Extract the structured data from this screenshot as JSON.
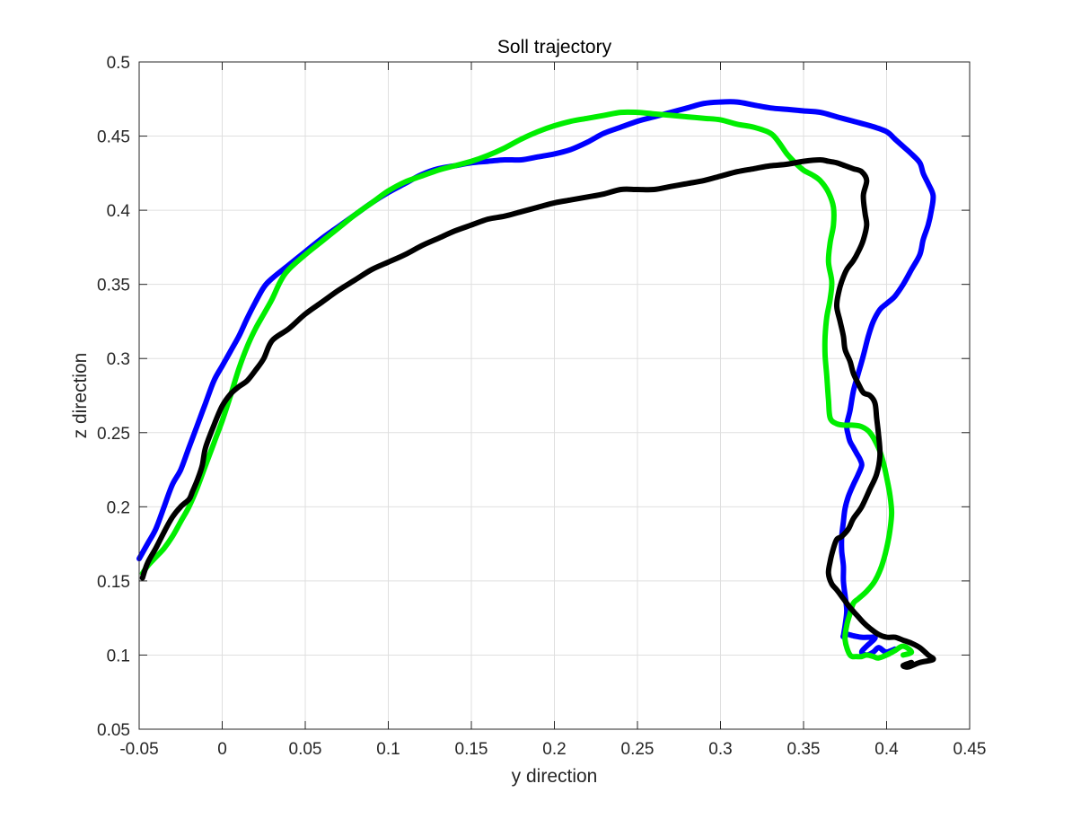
{
  "chart_data": {
    "type": "line",
    "title": "Soll trajectory",
    "xlabel": "y direction",
    "ylabel": "z direction",
    "xlim": [
      -0.05,
      0.45
    ],
    "ylim": [
      0.05,
      0.5
    ],
    "xticks": [
      -0.05,
      0,
      0.05,
      0.1,
      0.15,
      0.2,
      0.25,
      0.3,
      0.35,
      0.4,
      0.45
    ],
    "xtick_labels": [
      "-0.05",
      "0",
      "0.05",
      "0.1",
      "0.15",
      "0.2",
      "0.25",
      "0.3",
      "0.35",
      "0.4",
      "0.45"
    ],
    "yticks": [
      0.05,
      0.1,
      0.15,
      0.2,
      0.25,
      0.3,
      0.35,
      0.4,
      0.45,
      0.5
    ],
    "ytick_labels": [
      "0.05",
      "0.1",
      "0.15",
      "0.2",
      "0.25",
      "0.3",
      "0.35",
      "0.4",
      "0.45",
      "0.5"
    ],
    "grid": true,
    "box": true,
    "series": [
      {
        "color": "#0000ff",
        "x": [
          -0.05,
          -0.045,
          -0.04,
          -0.035,
          -0.03,
          -0.025,
          -0.02,
          -0.015,
          -0.01,
          -0.005,
          0.0,
          0.005,
          0.01,
          0.015,
          0.02,
          0.025,
          0.03,
          0.04,
          0.05,
          0.06,
          0.07,
          0.08,
          0.09,
          0.1,
          0.11,
          0.12,
          0.13,
          0.14,
          0.15,
          0.16,
          0.17,
          0.18,
          0.19,
          0.2,
          0.21,
          0.22,
          0.23,
          0.24,
          0.25,
          0.26,
          0.27,
          0.28,
          0.29,
          0.3,
          0.31,
          0.32,
          0.33,
          0.34,
          0.35,
          0.36,
          0.37,
          0.38,
          0.39,
          0.4,
          0.405,
          0.41,
          0.415,
          0.42,
          0.422,
          0.425,
          0.428,
          0.427,
          0.425,
          0.422,
          0.42,
          0.415,
          0.41,
          0.405,
          0.4,
          0.396,
          0.392,
          0.389,
          0.386,
          0.383,
          0.38,
          0.378,
          0.376,
          0.377,
          0.378,
          0.38,
          0.382,
          0.384,
          0.385,
          0.383,
          0.38,
          0.377,
          0.375,
          0.374,
          0.373,
          0.373,
          0.374,
          0.374,
          0.375,
          0.376,
          0.375,
          0.374,
          0.374,
          0.376,
          0.38,
          0.385,
          0.39,
          0.393,
          0.392,
          0.388,
          0.385,
          0.388,
          0.392,
          0.395,
          0.398,
          0.4,
          0.405
        ],
        "y": [
          0.165,
          0.175,
          0.185,
          0.2,
          0.215,
          0.225,
          0.24,
          0.255,
          0.27,
          0.285,
          0.295,
          0.305,
          0.315,
          0.327,
          0.338,
          0.348,
          0.354,
          0.363,
          0.372,
          0.381,
          0.389,
          0.397,
          0.405,
          0.412,
          0.418,
          0.424,
          0.428,
          0.43,
          0.432,
          0.433,
          0.434,
          0.434,
          0.436,
          0.438,
          0.441,
          0.446,
          0.452,
          0.456,
          0.46,
          0.463,
          0.466,
          0.469,
          0.472,
          0.473,
          0.473,
          0.471,
          0.469,
          0.468,
          0.467,
          0.466,
          0.463,
          0.46,
          0.457,
          0.453,
          0.448,
          0.443,
          0.438,
          0.432,
          0.425,
          0.418,
          0.41,
          0.4,
          0.39,
          0.38,
          0.37,
          0.36,
          0.35,
          0.342,
          0.337,
          0.333,
          0.325,
          0.315,
          0.302,
          0.29,
          0.278,
          0.265,
          0.255,
          0.248,
          0.244,
          0.24,
          0.236,
          0.232,
          0.228,
          0.222,
          0.215,
          0.207,
          0.199,
          0.19,
          0.18,
          0.17,
          0.16,
          0.15,
          0.14,
          0.13,
          0.12,
          0.113,
          0.113,
          0.114,
          0.113,
          0.112,
          0.112,
          0.112,
          0.11,
          0.106,
          0.102,
          0.1,
          0.102,
          0.105,
          0.103,
          0.102,
          0.104
        ]
      },
      {
        "color": "#00ee00",
        "x": [
          -0.048,
          -0.045,
          -0.04,
          -0.035,
          -0.03,
          -0.025,
          -0.02,
          -0.015,
          -0.01,
          -0.005,
          0.0,
          0.005,
          0.01,
          0.015,
          0.02,
          0.025,
          0.03,
          0.035,
          0.04,
          0.05,
          0.06,
          0.07,
          0.08,
          0.09,
          0.1,
          0.11,
          0.12,
          0.13,
          0.14,
          0.15,
          0.16,
          0.17,
          0.18,
          0.19,
          0.2,
          0.21,
          0.22,
          0.23,
          0.24,
          0.25,
          0.26,
          0.27,
          0.28,
          0.29,
          0.3,
          0.31,
          0.32,
          0.33,
          0.335,
          0.34,
          0.345,
          0.35,
          0.355,
          0.36,
          0.365,
          0.368,
          0.368,
          0.366,
          0.365,
          0.367,
          0.366,
          0.364,
          0.363,
          0.363,
          0.364,
          0.365,
          0.366,
          0.37,
          0.375,
          0.38,
          0.385,
          0.39,
          0.395,
          0.398,
          0.4,
          0.402,
          0.403,
          0.402,
          0.4,
          0.397,
          0.393,
          0.388,
          0.383,
          0.38,
          0.378,
          0.376,
          0.375,
          0.378,
          0.382,
          0.385,
          0.388,
          0.392,
          0.395,
          0.4,
          0.405,
          0.41,
          0.415,
          0.41
        ],
        "y": [
          0.155,
          0.16,
          0.166,
          0.172,
          0.18,
          0.19,
          0.2,
          0.213,
          0.228,
          0.243,
          0.258,
          0.275,
          0.293,
          0.308,
          0.32,
          0.33,
          0.34,
          0.352,
          0.36,
          0.37,
          0.379,
          0.388,
          0.397,
          0.405,
          0.413,
          0.419,
          0.423,
          0.427,
          0.43,
          0.433,
          0.437,
          0.442,
          0.448,
          0.453,
          0.457,
          0.46,
          0.462,
          0.464,
          0.466,
          0.466,
          0.465,
          0.464,
          0.463,
          0.462,
          0.461,
          0.458,
          0.456,
          0.452,
          0.446,
          0.438,
          0.432,
          0.427,
          0.424,
          0.42,
          0.412,
          0.402,
          0.39,
          0.378,
          0.365,
          0.352,
          0.34,
          0.328,
          0.315,
          0.302,
          0.288,
          0.272,
          0.26,
          0.256,
          0.255,
          0.255,
          0.254,
          0.25,
          0.24,
          0.23,
          0.22,
          0.208,
          0.196,
          0.184,
          0.172,
          0.16,
          0.15,
          0.143,
          0.138,
          0.135,
          0.128,
          0.12,
          0.11,
          0.1,
          0.099,
          0.099,
          0.1,
          0.099,
          0.098,
          0.1,
          0.103,
          0.106,
          0.102,
          0.1
        ]
      },
      {
        "color": "#000000",
        "x": [
          -0.048,
          -0.045,
          -0.04,
          -0.035,
          -0.03,
          -0.025,
          -0.02,
          -0.018,
          -0.015,
          -0.012,
          -0.01,
          -0.005,
          0.0,
          0.005,
          0.01,
          0.015,
          0.02,
          0.025,
          0.03,
          0.04,
          0.05,
          0.06,
          0.07,
          0.08,
          0.09,
          0.1,
          0.11,
          0.12,
          0.13,
          0.14,
          0.15,
          0.16,
          0.17,
          0.18,
          0.19,
          0.2,
          0.21,
          0.22,
          0.23,
          0.24,
          0.25,
          0.26,
          0.27,
          0.28,
          0.29,
          0.3,
          0.31,
          0.32,
          0.33,
          0.34,
          0.35,
          0.36,
          0.365,
          0.37,
          0.375,
          0.38,
          0.385,
          0.388,
          0.386,
          0.387,
          0.388,
          0.386,
          0.383,
          0.38,
          0.376,
          0.373,
          0.371,
          0.37,
          0.372,
          0.374,
          0.375,
          0.378,
          0.38,
          0.383,
          0.386,
          0.39,
          0.393,
          0.394,
          0.395,
          0.396,
          0.394,
          0.39,
          0.385,
          0.38,
          0.377,
          0.373,
          0.37,
          0.368,
          0.366,
          0.365,
          0.367,
          0.37,
          0.374,
          0.378,
          0.382,
          0.386,
          0.39,
          0.395,
          0.4,
          0.405,
          0.41,
          0.415,
          0.42,
          0.425,
          0.428,
          0.42,
          0.413,
          0.41,
          0.415
        ],
        "y": [
          0.152,
          0.162,
          0.172,
          0.183,
          0.193,
          0.2,
          0.205,
          0.21,
          0.218,
          0.228,
          0.24,
          0.255,
          0.268,
          0.276,
          0.281,
          0.285,
          0.292,
          0.3,
          0.312,
          0.32,
          0.33,
          0.338,
          0.346,
          0.353,
          0.36,
          0.365,
          0.37,
          0.376,
          0.381,
          0.386,
          0.39,
          0.394,
          0.396,
          0.399,
          0.402,
          0.405,
          0.407,
          0.409,
          0.411,
          0.414,
          0.414,
          0.414,
          0.416,
          0.418,
          0.42,
          0.423,
          0.426,
          0.428,
          0.43,
          0.431,
          0.433,
          0.434,
          0.433,
          0.432,
          0.43,
          0.428,
          0.426,
          0.42,
          0.41,
          0.398,
          0.39,
          0.38,
          0.372,
          0.366,
          0.36,
          0.352,
          0.344,
          0.335,
          0.325,
          0.315,
          0.306,
          0.298,
          0.29,
          0.283,
          0.277,
          0.275,
          0.27,
          0.26,
          0.25,
          0.235,
          0.222,
          0.212,
          0.2,
          0.192,
          0.185,
          0.18,
          0.178,
          0.172,
          0.163,
          0.155,
          0.148,
          0.144,
          0.138,
          0.132,
          0.127,
          0.122,
          0.118,
          0.114,
          0.112,
          0.112,
          0.11,
          0.108,
          0.105,
          0.1,
          0.097,
          0.095,
          0.092,
          0.093,
          0.095
        ]
      }
    ]
  }
}
